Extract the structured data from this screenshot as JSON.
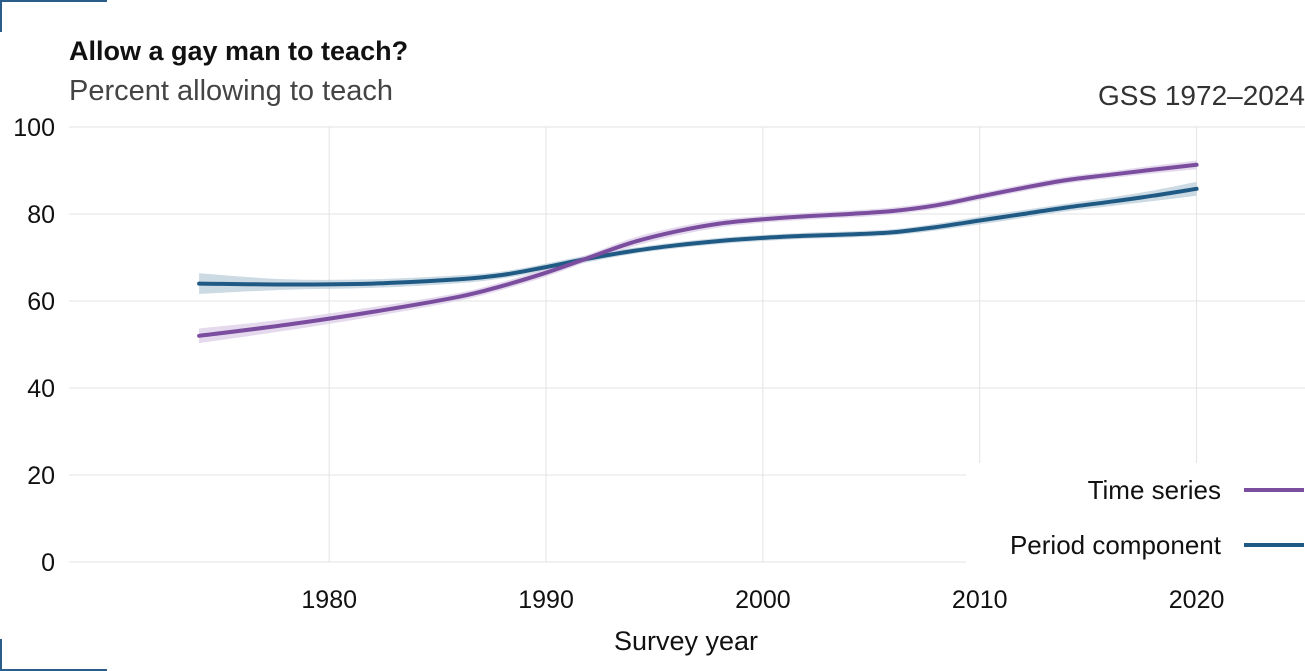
{
  "chart_data": {
    "type": "line",
    "title": "Allow a gay man to teach?",
    "subtitle": "Percent allowing to teach",
    "caption": "GSS 1972–2024",
    "xlabel": "Survey year",
    "ylabel": "",
    "xlim": [
      1968,
      2025
    ],
    "ylim": [
      0,
      100
    ],
    "xticks": [
      1980,
      1990,
      2000,
      2010,
      2020
    ],
    "yticks": [
      0,
      20,
      40,
      60,
      80,
      100
    ],
    "grid": true,
    "legend_position": "bottom-right",
    "series": [
      {
        "name": "Time series",
        "color": "#7b4d9e",
        "band_color": "#d9c9e6",
        "x": [
          1974,
          1978,
          1982,
          1986,
          1988,
          1990,
          1992,
          1994,
          1996,
          1998,
          2000,
          2002,
          2004,
          2006,
          2008,
          2010,
          2012,
          2014,
          2016,
          2018,
          2020
        ],
        "values": [
          52,
          54.5,
          57.5,
          61,
          63.5,
          66.5,
          70,
          73.5,
          76,
          77.8,
          78.8,
          79.5,
          80,
          80.7,
          82,
          84,
          86,
          87.8,
          89,
          90.2,
          91.3
        ],
        "lower": [
          50.3,
          53.2,
          56.4,
          60.1,
          62.6,
          65.6,
          69.2,
          72.5,
          75,
          76.9,
          78,
          78.7,
          79.2,
          79.9,
          81.2,
          83.2,
          85.2,
          87,
          88.2,
          89.3,
          90.3
        ],
        "upper": [
          53.7,
          55.8,
          58.6,
          61.9,
          64.4,
          67.4,
          70.8,
          74.5,
          77,
          78.7,
          79.6,
          80.3,
          80.8,
          81.5,
          82.8,
          84.8,
          86.8,
          88.6,
          89.8,
          91.1,
          92.3
        ]
      },
      {
        "name": "Period component",
        "color": "#1f5a85",
        "band_color": "#b7cad9",
        "x": [
          1974,
          1978,
          1982,
          1986,
          1988,
          1990,
          1992,
          1994,
          1996,
          1998,
          2000,
          2002,
          2004,
          2006,
          2008,
          2010,
          2012,
          2014,
          2016,
          2018,
          2020
        ],
        "values": [
          64,
          63.8,
          64,
          65,
          66,
          67.8,
          69.8,
          71.5,
          72.8,
          73.8,
          74.5,
          75,
          75.3,
          75.8,
          77,
          78.5,
          80,
          81.5,
          82.8,
          84.2,
          85.8
        ],
        "lower": [
          61.6,
          62.6,
          63,
          64.1,
          65.2,
          67,
          69,
          70.8,
          72.1,
          73.1,
          73.8,
          74.3,
          74.6,
          75.1,
          76.2,
          77.6,
          79.1,
          80.6,
          81.8,
          83,
          84.2
        ],
        "upper": [
          66.4,
          65,
          65,
          65.9,
          66.8,
          68.6,
          70.6,
          72.2,
          73.5,
          74.5,
          75.2,
          75.7,
          76,
          76.5,
          77.8,
          79.4,
          80.9,
          82.4,
          83.8,
          85.4,
          87.4
        ]
      }
    ]
  }
}
